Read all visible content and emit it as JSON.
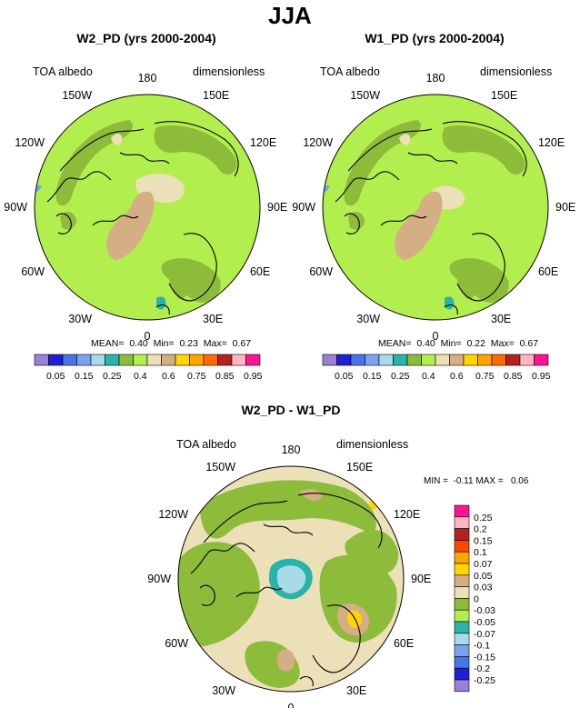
{
  "title": "JJA",
  "colors": {
    "land": "#b3ee4f",
    "green_dark": "#8dbb3a",
    "tan": "#ece0b8",
    "tan_dark": "#d5ae85",
    "teal": "#2ab3a9",
    "lightblue": "#a8dbe8",
    "coast": "#000000"
  },
  "panels": [
    {
      "title": "W2_PD (yrs 2000-2004)",
      "left_label": "TOA albedo",
      "right_label": "dimensionless",
      "stats": {
        "mean_label": "MEAN=",
        "mean": "0.40",
        "min_label": "Min=",
        "min": "0.23",
        "max_label": "Max=",
        "max": "0.67"
      }
    },
    {
      "title": "W1_PD (yrs 2000-2004)",
      "left_label": "TOA albedo",
      "right_label": "dimensionless",
      "stats": {
        "mean_label": "MEAN=",
        "mean": "0.40",
        "min_label": "Min=",
        "min": "0.22",
        "max_label": "Max=",
        "max": "0.67"
      }
    },
    {
      "title": "W2_PD - W1_PD",
      "left_label": "TOA albedo",
      "right_label": "dimensionless",
      "minmax": "MIN =  -0.11 MAX =   0.06"
    }
  ],
  "lon_labels": [
    "180",
    "150E",
    "120E",
    "90E",
    "60E",
    "30E",
    "0",
    "30W",
    "60W",
    "90W",
    "120W",
    "150W"
  ],
  "chart_data": [
    {
      "type": "heatmap",
      "title": "W2_PD (yrs 2000-2004)",
      "variable": "TOA albedo",
      "units": "dimensionless",
      "projection": "north polar stereographic",
      "mean": 0.4,
      "min": 0.23,
      "max": 0.67,
      "colorbar": {
        "levels": [
          "0.05",
          "0.15",
          "0.25",
          "0.4",
          "0.6",
          "0.75",
          "0.85",
          "0.95"
        ],
        "colors": [
          "#9c7fd6",
          "#1f1fd6",
          "#4575e8",
          "#7aa3ef",
          "#a8dbe8",
          "#2ab3a9",
          "#8dbb3a",
          "#b3ee4f",
          "#ece0b8",
          "#d5ae85",
          "#ffd700",
          "#ffa400",
          "#ff6a00",
          "#b22222",
          "#ffb6c1",
          "#ff1493"
        ]
      }
    },
    {
      "type": "heatmap",
      "title": "W1_PD (yrs 2000-2004)",
      "variable": "TOA albedo",
      "units": "dimensionless",
      "projection": "north polar stereographic",
      "mean": 0.4,
      "min": 0.22,
      "max": 0.67,
      "colorbar": {
        "levels": [
          "0.05",
          "0.15",
          "0.25",
          "0.4",
          "0.6",
          "0.75",
          "0.85",
          "0.95"
        ],
        "colors": [
          "#9c7fd6",
          "#1f1fd6",
          "#4575e8",
          "#7aa3ef",
          "#a8dbe8",
          "#2ab3a9",
          "#8dbb3a",
          "#b3ee4f",
          "#ece0b8",
          "#d5ae85",
          "#ffd700",
          "#ffa400",
          "#ff6a00",
          "#b22222",
          "#ffb6c1",
          "#ff1493"
        ]
      }
    },
    {
      "type": "heatmap",
      "title": "W2_PD - W1_PD",
      "variable": "TOA albedo",
      "units": "dimensionless",
      "projection": "north polar stereographic",
      "min": -0.11,
      "max": 0.06,
      "colorbar": {
        "orientation": "vertical",
        "levels": [
          "0.25",
          "0.2",
          "0.15",
          "0.1",
          "0.07",
          "0.05",
          "0.03",
          "0",
          "-0.03",
          "-0.05",
          "-0.07",
          "-0.1",
          "-0.15",
          "-0.2",
          "-0.25"
        ],
        "colors": [
          "#ff1493",
          "#ffb6c1",
          "#b22222",
          "#ff4500",
          "#ffa400",
          "#ffd700",
          "#d5ae85",
          "#ece0b8",
          "#8dbb3a",
          "#b3ee4f",
          "#2ab3a9",
          "#a8dbe8",
          "#7aa3ef",
          "#4575e8",
          "#1f1fd6",
          "#9c7fd6"
        ]
      }
    }
  ]
}
